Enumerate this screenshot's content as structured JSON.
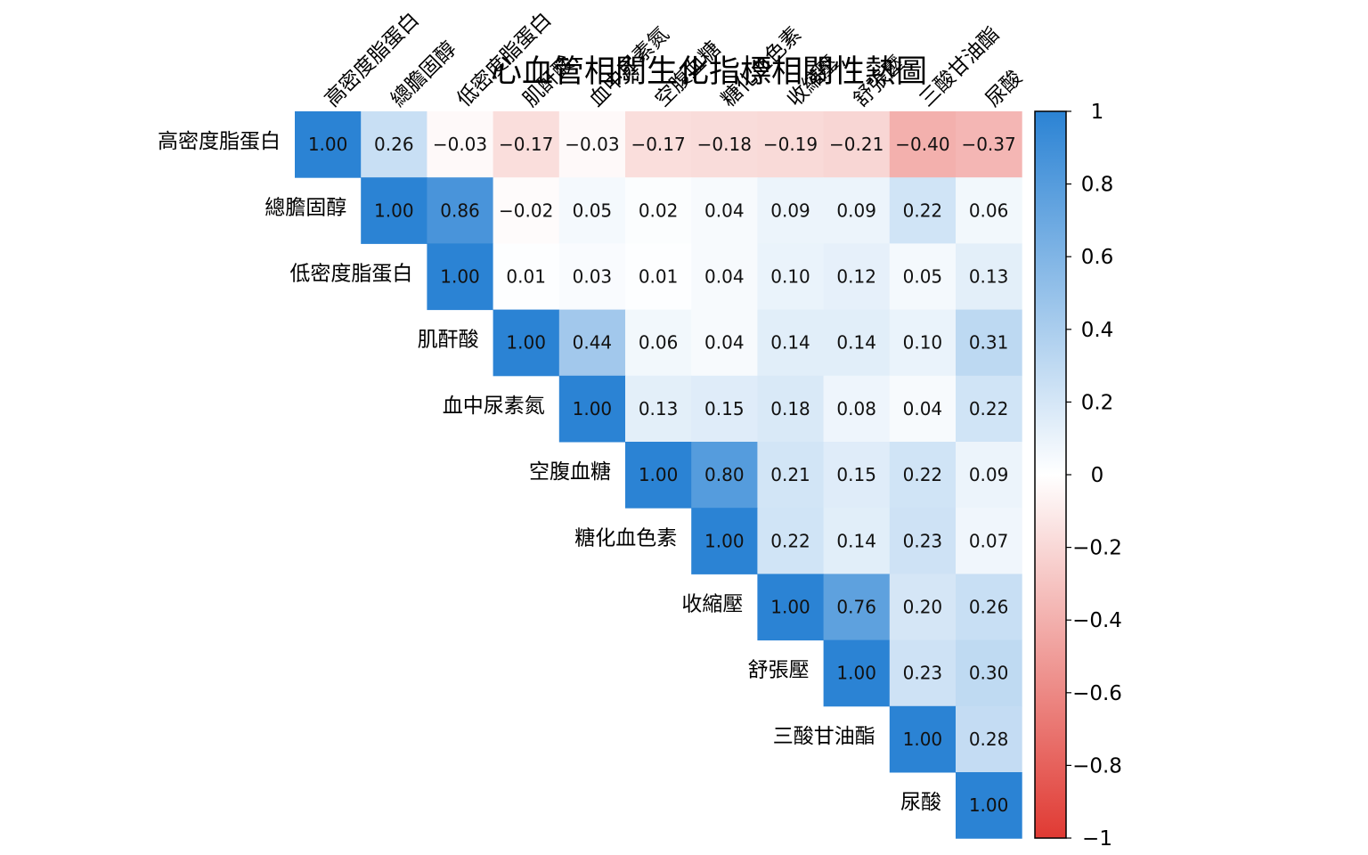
{
  "chart_data": {
    "type": "heatmap",
    "title": "心血管相關生化指標相關性熱圖",
    "variables": [
      "高密度脂蛋白",
      "總膽固醇",
      "低密度脂蛋白",
      "肌酐酸",
      "血中尿素氮",
      "空腹血糖",
      "糖化血色素",
      "收縮壓",
      "舒張壓",
      "三酸甘油酯",
      "尿酸"
    ],
    "matrix_upper": [
      [
        "1.00",
        "0.26",
        "−0.03",
        "−0.17",
        "−0.03",
        "−0.17",
        "−0.18",
        "−0.19",
        "−0.21",
        "−0.40",
        "−0.37"
      ],
      [
        "1.00",
        "0.86",
        "−0.02",
        "0.05",
        "0.02",
        "0.04",
        "0.09",
        "0.09",
        "0.22",
        "0.06"
      ],
      [
        "1.00",
        "0.01",
        "0.03",
        "0.01",
        "0.04",
        "0.10",
        "0.12",
        "0.05",
        "0.13"
      ],
      [
        "1.00",
        "0.44",
        "0.06",
        "0.04",
        "0.14",
        "0.14",
        "0.10",
        "0.31"
      ],
      [
        "1.00",
        "0.13",
        "0.15",
        "0.18",
        "0.08",
        "0.04",
        "0.22"
      ],
      [
        "1.00",
        "0.80",
        "0.21",
        "0.15",
        "0.22",
        "0.09"
      ],
      [
        "1.00",
        "0.22",
        "0.14",
        "0.23",
        "0.07"
      ],
      [
        "1.00",
        "0.76",
        "0.20",
        "0.26"
      ],
      [
        "1.00",
        "0.23",
        "0.30"
      ],
      [
        "1.00",
        "0.28"
      ],
      [
        "1.00"
      ]
    ],
    "colorbar": {
      "range": [
        -1,
        1
      ],
      "ticks": [
        1,
        0.8,
        0.6,
        0.4,
        0.2,
        0,
        -0.2,
        -0.4,
        -0.6,
        -0.8,
        -1
      ],
      "tick_labels": [
        "1",
        "0.8",
        "0.6",
        "0.4",
        "0.2",
        "0",
        "−0.2",
        "−0.4",
        "−0.6",
        "−0.8",
        "−1"
      ],
      "positive_color": "#2b83d4",
      "negative_color": "#e03a33"
    }
  }
}
